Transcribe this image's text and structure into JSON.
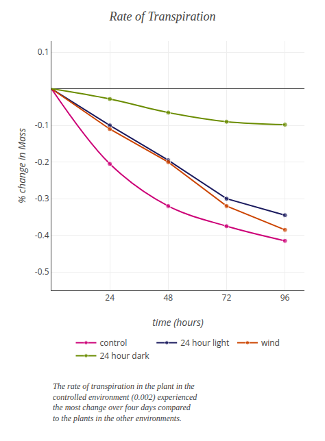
{
  "chart_data": {
    "type": "line",
    "title": "Rate of Transpiration",
    "xlabel": "time (hours)",
    "ylabel": "% change in Mass",
    "x": [
      0,
      24,
      48,
      72,
      96
    ],
    "series": [
      {
        "name": "control",
        "color": "#cc0077",
        "line_style": "smooth",
        "marker": "circle",
        "values": [
          0,
          -0.205,
          -0.32,
          -0.375,
          -0.415
        ]
      },
      {
        "name": "24 hour light",
        "color": "#1a1a5e",
        "line_style": "solid",
        "marker": "circle",
        "values": [
          0,
          -0.1,
          -0.195,
          -0.3,
          -0.345
        ]
      },
      {
        "name": "wind",
        "color": "#cc4400",
        "line_style": "solid",
        "marker": "circle",
        "values": [
          0,
          -0.11,
          -0.2,
          -0.32,
          -0.385
        ]
      },
      {
        "name": "24 hour dark",
        "color": "#6a8c00",
        "line_style": "smooth",
        "marker": "circle",
        "values": [
          0,
          -0.028,
          -0.065,
          -0.09,
          -0.098
        ]
      }
    ],
    "xlim": [
      0,
      104
    ],
    "ylim": [
      -0.55,
      0.13
    ],
    "xticks": [
      24,
      48,
      72,
      96
    ],
    "yticks": [
      -0.5,
      -0.4,
      -0.3,
      -0.2,
      -0.1,
      0.1
    ],
    "grid": true,
    "legend": "bottom",
    "annotations": [
      "The rate of transpiration in the plant in the\ncontrolled environment (0.002) experienced\nthe most change over four days compared\nto the plants in the other environments."
    ]
  }
}
